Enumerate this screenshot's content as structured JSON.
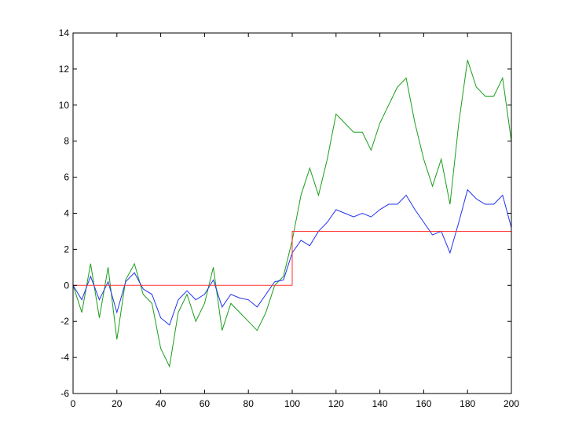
{
  "chart_data": {
    "type": "line",
    "xlim": [
      0,
      200
    ],
    "xticks": [
      0,
      20,
      40,
      60,
      80,
      100,
      120,
      140,
      160,
      180,
      200
    ],
    "ylim": [
      -6,
      14
    ],
    "yticks": [
      -6,
      -4,
      -2,
      0,
      2,
      4,
      6,
      8,
      10,
      12,
      14
    ],
    "grid": false,
    "series": [
      {
        "color": "#1a9e1a",
        "x": [
          0,
          4,
          8,
          12,
          16,
          20,
          24,
          28,
          32,
          36,
          40,
          44,
          48,
          52,
          56,
          60,
          64,
          68,
          72,
          76,
          80,
          84,
          88,
          92,
          96,
          100,
          104,
          108,
          112,
          116,
          120,
          124,
          128,
          132,
          136,
          140,
          144,
          148,
          152,
          156,
          160,
          164,
          168,
          172,
          176,
          180,
          184,
          188,
          192,
          196,
          200
        ],
        "values": [
          0,
          -1.5,
          1.2,
          -1.8,
          1,
          -3,
          0.3,
          1.2,
          -0.5,
          -1,
          -3.5,
          -4.5,
          -1.5,
          -0.5,
          -2,
          -1,
          1,
          -2.5,
          -1,
          -1.5,
          -2,
          -2.5,
          -1.5,
          0,
          0.5,
          2.5,
          5,
          6.5,
          5,
          7,
          9.5,
          9,
          8.5,
          8.5,
          7.5,
          9,
          10,
          11,
          11.5,
          9,
          7,
          5.5,
          7,
          4.5,
          9,
          12.5,
          11,
          10.5,
          10.5,
          11.5,
          8
        ]
      },
      {
        "color": "#2233ee",
        "x": [
          0,
          4,
          8,
          12,
          16,
          20,
          24,
          28,
          32,
          36,
          40,
          44,
          48,
          52,
          56,
          60,
          64,
          68,
          72,
          76,
          80,
          84,
          88,
          92,
          96,
          100,
          104,
          108,
          112,
          116,
          120,
          124,
          128,
          132,
          136,
          140,
          144,
          148,
          152,
          156,
          160,
          164,
          168,
          172,
          176,
          180,
          184,
          188,
          192,
          196,
          200
        ],
        "values": [
          0,
          -0.8,
          0.5,
          -0.8,
          0.2,
          -1.5,
          0.2,
          0.7,
          -0.2,
          -0.5,
          -1.8,
          -2.2,
          -0.8,
          -0.3,
          -0.8,
          -0.5,
          0.3,
          -1.2,
          -0.5,
          -0.7,
          -0.8,
          -1.2,
          -0.5,
          0.2,
          0.3,
          1.8,
          2.5,
          2.2,
          3,
          3.5,
          4.2,
          4,
          3.8,
          4,
          3.8,
          4.2,
          4.5,
          4.5,
          5,
          4.2,
          3.5,
          2.8,
          3,
          1.8,
          3.5,
          5.3,
          4.8,
          4.5,
          4.5,
          5,
          3.2
        ]
      },
      {
        "color": "#ff3333",
        "x": [
          0,
          100,
          100,
          200
        ],
        "values": [
          0,
          0,
          3,
          3
        ]
      }
    ]
  }
}
